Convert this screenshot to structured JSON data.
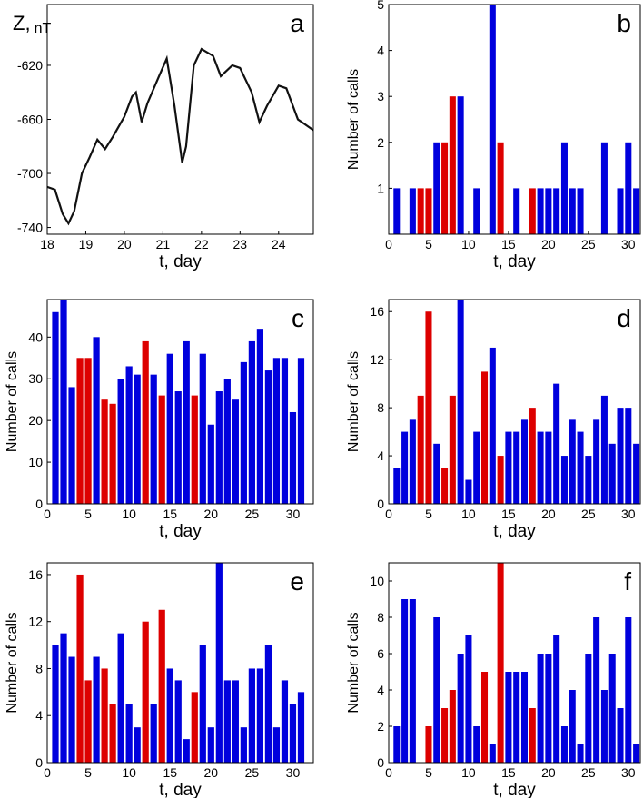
{
  "chart_data": [
    {
      "type": "line",
      "panel": "a",
      "ylabel": "Z,",
      "ylabel_unit": "nT",
      "xlabel": "t, day",
      "color": "#111111",
      "x": [
        18,
        18.2,
        18.4,
        18.55,
        18.7,
        18.9,
        19.1,
        19.3,
        19.5,
        19.7,
        20,
        20.2,
        20.3,
        20.45,
        20.6,
        20.9,
        21.1,
        21.3,
        21.5,
        21.6,
        21.8,
        22,
        22.3,
        22.5,
        22.8,
        23,
        23.3,
        23.5,
        23.7,
        24,
        24.2,
        24.5,
        24.9
      ],
      "values": [
        -710,
        -712,
        -730,
        -737,
        -728,
        -700,
        -688,
        -675,
        -682,
        -673,
        -658,
        -643,
        -640,
        -662,
        -648,
        -628,
        -615,
        -650,
        -692,
        -680,
        -620,
        -608,
        -613,
        -628,
        -620,
        -622,
        -640,
        -662,
        -650,
        -635,
        -637,
        -660,
        -668
      ],
      "xlim": [
        18,
        24.9
      ],
      "ylim": [
        -745,
        -575
      ],
      "xticks": [
        18,
        19,
        20,
        21,
        22,
        23,
        24
      ],
      "yticks": [
        -740,
        -700,
        -660,
        -620
      ]
    },
    {
      "type": "bar",
      "panel": "b",
      "ylabel": "Number of calls",
      "xlabel": "t, day",
      "x": [
        1,
        2,
        3,
        4,
        5,
        6,
        7,
        8,
        9,
        10,
        11,
        12,
        13,
        14,
        15,
        16,
        17,
        18,
        19,
        20,
        21,
        22,
        23,
        24,
        25,
        26,
        27,
        28,
        29,
        30,
        31
      ],
      "values": [
        1,
        0,
        1,
        1,
        1,
        2,
        2,
        3,
        3,
        0,
        1,
        0,
        5,
        2,
        0,
        1,
        0,
        1,
        1,
        1,
        1,
        2,
        1,
        1,
        0,
        0,
        2,
        0,
        1,
        2,
        1
      ],
      "colors": [
        "#0000dd",
        "#0000dd",
        "#0000dd",
        "#dd0000",
        "#dd0000",
        "#0000dd",
        "#dd0000",
        "#dd0000",
        "#0000dd",
        "#0000dd",
        "#0000dd",
        "#0000dd",
        "#0000dd",
        "#dd0000",
        "#0000dd",
        "#0000dd",
        "#0000dd",
        "#dd0000",
        "#0000dd",
        "#0000dd",
        "#0000dd",
        "#0000dd",
        "#0000dd",
        "#0000dd",
        "#0000dd",
        "#0000dd",
        "#0000dd",
        "#0000dd",
        "#0000dd",
        "#0000dd",
        "#0000dd"
      ],
      "xlim": [
        0,
        31.5
      ],
      "ylim": [
        0,
        5
      ],
      "xticks": [
        0,
        5,
        10,
        15,
        20,
        25,
        30
      ],
      "yticks": [
        1,
        2,
        3,
        4,
        5
      ]
    },
    {
      "type": "bar",
      "panel": "c",
      "ylabel": "Number of calls",
      "xlabel": "t, day",
      "x": [
        1,
        2,
        3,
        4,
        5,
        6,
        7,
        8,
        9,
        10,
        11,
        12,
        13,
        14,
        15,
        16,
        17,
        18,
        19,
        20,
        21,
        22,
        23,
        24,
        25,
        26,
        27,
        28,
        29,
        30,
        31
      ],
      "values": [
        46,
        49,
        28,
        35,
        35,
        40,
        25,
        24,
        30,
        33,
        31,
        39,
        31,
        26,
        36,
        27,
        39,
        26,
        36,
        19,
        27,
        30,
        25,
        34,
        39,
        42,
        32,
        35,
        35,
        22,
        35
      ],
      "colors": [
        "#0000dd",
        "#0000dd",
        "#0000dd",
        "#dd0000",
        "#dd0000",
        "#0000dd",
        "#dd0000",
        "#dd0000",
        "#0000dd",
        "#0000dd",
        "#0000dd",
        "#dd0000",
        "#0000dd",
        "#dd0000",
        "#0000dd",
        "#0000dd",
        "#0000dd",
        "#dd0000",
        "#0000dd",
        "#0000dd",
        "#0000dd",
        "#0000dd",
        "#0000dd",
        "#0000dd",
        "#0000dd",
        "#0000dd",
        "#0000dd",
        "#0000dd",
        "#0000dd",
        "#0000dd",
        "#0000dd"
      ],
      "xlim": [
        0,
        32.5
      ],
      "ylim": [
        0,
        49
      ],
      "xticks": [
        0,
        5,
        10,
        15,
        20,
        25,
        30
      ],
      "yticks": [
        0,
        10,
        20,
        30,
        40
      ]
    },
    {
      "type": "bar",
      "panel": "d",
      "ylabel": "Number of calls",
      "xlabel": "t, day",
      "x": [
        1,
        2,
        3,
        4,
        5,
        6,
        7,
        8,
        9,
        10,
        11,
        12,
        13,
        14,
        15,
        16,
        17,
        18,
        19,
        20,
        21,
        22,
        23,
        24,
        25,
        26,
        27,
        28,
        29,
        30,
        31
      ],
      "values": [
        3,
        6,
        7,
        9,
        16,
        5,
        3,
        9,
        17,
        2,
        6,
        11,
        13,
        4,
        6,
        6,
        7,
        8,
        6,
        6,
        10,
        4,
        7,
        6,
        4,
        7,
        9,
        5,
        8,
        8,
        5
      ],
      "colors": [
        "#0000dd",
        "#0000dd",
        "#0000dd",
        "#dd0000",
        "#dd0000",
        "#0000dd",
        "#dd0000",
        "#dd0000",
        "#0000dd",
        "#0000dd",
        "#0000dd",
        "#dd0000",
        "#0000dd",
        "#dd0000",
        "#0000dd",
        "#0000dd",
        "#0000dd",
        "#dd0000",
        "#0000dd",
        "#0000dd",
        "#0000dd",
        "#0000dd",
        "#0000dd",
        "#0000dd",
        "#0000dd",
        "#0000dd",
        "#0000dd",
        "#0000dd",
        "#0000dd",
        "#0000dd",
        "#0000dd"
      ],
      "xlim": [
        0,
        31.5
      ],
      "ylim": [
        0,
        17
      ],
      "xticks": [
        0,
        5,
        10,
        15,
        20,
        25,
        30
      ],
      "yticks": [
        0,
        4,
        8,
        12,
        16
      ]
    },
    {
      "type": "bar",
      "panel": "e",
      "ylabel": "Number of calls",
      "xlabel": "t, day",
      "x": [
        1,
        2,
        3,
        4,
        5,
        6,
        7,
        8,
        9,
        10,
        11,
        12,
        13,
        14,
        15,
        16,
        17,
        18,
        19,
        20,
        21,
        22,
        23,
        24,
        25,
        26,
        27,
        28,
        29,
        30,
        31
      ],
      "values": [
        10,
        11,
        9,
        16,
        7,
        9,
        8,
        5,
        11,
        5,
        3,
        12,
        5,
        13,
        8,
        7,
        2,
        6,
        10,
        3,
        17,
        7,
        7,
        3,
        8,
        8,
        10,
        3,
        7,
        5,
        6
      ],
      "colors": [
        "#0000dd",
        "#0000dd",
        "#0000dd",
        "#dd0000",
        "#dd0000",
        "#0000dd",
        "#dd0000",
        "#dd0000",
        "#0000dd",
        "#0000dd",
        "#0000dd",
        "#dd0000",
        "#0000dd",
        "#dd0000",
        "#0000dd",
        "#0000dd",
        "#0000dd",
        "#dd0000",
        "#0000dd",
        "#0000dd",
        "#0000dd",
        "#0000dd",
        "#0000dd",
        "#0000dd",
        "#0000dd",
        "#0000dd",
        "#0000dd",
        "#0000dd",
        "#0000dd",
        "#0000dd",
        "#0000dd"
      ],
      "xlim": [
        0,
        32.5
      ],
      "ylim": [
        0,
        17
      ],
      "xticks": [
        0,
        5,
        10,
        15,
        20,
        25,
        30
      ],
      "yticks": [
        0,
        4,
        8,
        12,
        16
      ]
    },
    {
      "type": "bar",
      "panel": "f",
      "ylabel": "Number of calls",
      "xlabel": "t, day",
      "x": [
        1,
        2,
        3,
        4,
        5,
        6,
        7,
        8,
        9,
        10,
        11,
        12,
        13,
        14,
        15,
        16,
        17,
        18,
        19,
        20,
        21,
        22,
        23,
        24,
        25,
        26,
        27,
        28,
        29,
        30,
        31
      ],
      "values": [
        2,
        9,
        9,
        0,
        2,
        8,
        3,
        4,
        6,
        7,
        2,
        5,
        1,
        11,
        5,
        5,
        5,
        3,
        6,
        6,
        7,
        2,
        4,
        1,
        6,
        8,
        4,
        6,
        3,
        8,
        1
      ],
      "colors": [
        "#0000dd",
        "#0000dd",
        "#0000dd",
        "#0000dd",
        "#dd0000",
        "#0000dd",
        "#dd0000",
        "#dd0000",
        "#0000dd",
        "#0000dd",
        "#0000dd",
        "#dd0000",
        "#0000dd",
        "#dd0000",
        "#0000dd",
        "#0000dd",
        "#0000dd",
        "#dd0000",
        "#0000dd",
        "#0000dd",
        "#0000dd",
        "#0000dd",
        "#0000dd",
        "#0000dd",
        "#0000dd",
        "#0000dd",
        "#0000dd",
        "#0000dd",
        "#0000dd",
        "#0000dd",
        "#0000dd"
      ],
      "xlim": [
        0,
        31.5
      ],
      "ylim": [
        0,
        11
      ],
      "xticks": [
        0,
        5,
        10,
        15,
        20,
        25,
        30
      ],
      "yticks": [
        0,
        2,
        4,
        6,
        8,
        10
      ]
    }
  ]
}
